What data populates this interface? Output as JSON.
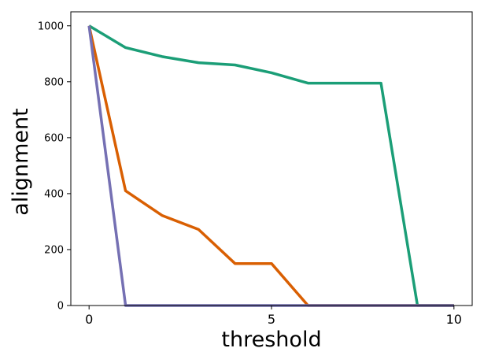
{
  "chart_data": {
    "type": "line",
    "title": "",
    "xlabel": "threshold",
    "ylabel": "alignment",
    "xlim": [
      -0.5,
      10.5
    ],
    "ylim": [
      0,
      1050
    ],
    "x_ticks": [
      0,
      5,
      10
    ],
    "x_tick_labels": [
      "0",
      "5",
      "10"
    ],
    "y_ticks": [
      0,
      200,
      400,
      600,
      800,
      1000
    ],
    "y_tick_labels": [
      "0",
      "200",
      "400",
      "600",
      "800",
      "1000"
    ],
    "grid": false,
    "legend": null,
    "x": [
      0,
      1,
      2,
      3,
      4,
      5,
      6,
      7,
      8,
      9,
      10
    ],
    "series": [
      {
        "color": "#1b9e77",
        "values": [
          1000,
          922,
          890,
          868,
          860,
          832,
          795,
          795,
          795,
          0,
          0
        ]
      },
      {
        "color": "#d95f02",
        "values": [
          1000,
          410,
          322,
          272,
          150,
          150,
          0,
          0,
          0,
          0,
          0
        ]
      },
      {
        "color": "#7570b3",
        "values": [
          1000,
          0,
          0,
          0,
          0,
          0,
          0,
          0,
          0,
          0,
          0
        ]
      }
    ]
  }
}
